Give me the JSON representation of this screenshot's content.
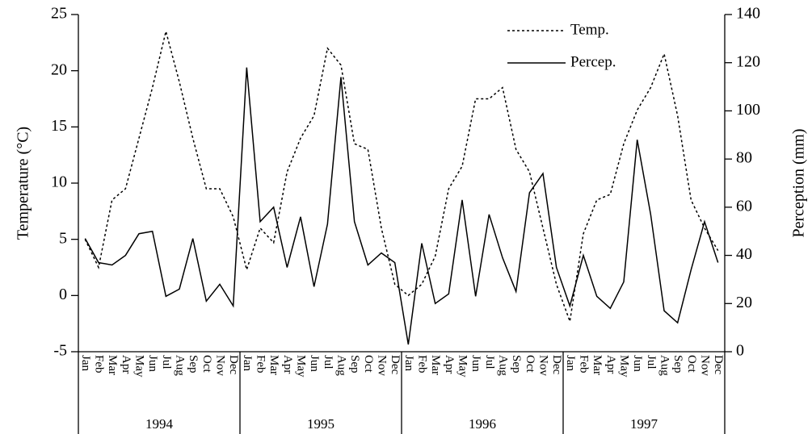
{
  "chart_data": {
    "type": "line",
    "y_label": "Temperature (°C)",
    "y2_label": "Perception (mm)",
    "categories": [
      "Jan",
      "Feb",
      "Mar",
      "Apr",
      "May",
      "Jun",
      "Jul",
      "Aug",
      "Sep",
      "Oct",
      "Nov",
      "Dec",
      "Jan",
      "Feb",
      "Mar",
      "Apr",
      "May",
      "Jun",
      "Jul",
      "Aug",
      "Sep",
      "Oct",
      "Nov",
      "Dec",
      "Jan",
      "Feb",
      "Mar",
      "Apr",
      "May",
      "Jun",
      "Jul",
      "Aug",
      "Sep",
      "Oct",
      "Nov",
      "Dec",
      "Jan",
      "Feb",
      "Mar",
      "Apr",
      "May",
      "Jun",
      "Jul",
      "Aug",
      "Sep",
      "Oct",
      "Nov",
      "Dec"
    ],
    "groups": [
      "1994",
      "1995",
      "1996",
      "1997"
    ],
    "series": [
      {
        "name": "Temp.",
        "color": "#000000",
        "style": "dotted",
        "values": [
          5,
          2.5,
          8.5,
          9.5,
          14,
          18.5,
          23.5,
          19,
          14,
          9.5,
          9.5,
          7,
          2.3,
          6,
          4.7,
          11,
          14,
          16,
          22,
          20.5,
          13.5,
          13,
          6,
          1,
          0,
          1,
          3.5,
          9.5,
          11.5,
          17.5,
          17.5,
          18.5,
          13,
          11,
          6,
          1,
          -2.3,
          5.5,
          8.5,
          9,
          13.5,
          16.5,
          18.5,
          21.5,
          16,
          8.5,
          6,
          4
        ]
      },
      {
        "name": "Percep.",
        "color": "#000000",
        "style": "solid",
        "axis": "y2",
        "values": [
          47,
          37,
          36,
          40,
          49,
          50,
          23,
          26,
          47,
          21,
          28,
          19,
          118,
          54,
          60,
          35,
          56,
          27,
          53,
          114,
          54,
          36,
          41,
          37,
          3,
          45,
          20,
          24,
          63,
          23,
          57,
          39,
          25,
          66,
          74,
          35,
          19,
          40,
          23,
          18,
          29,
          88,
          57,
          17,
          12,
          34,
          54,
          37
        ]
      }
    ],
    "ylim": [
      -5,
      25
    ],
    "yticks": [
      -5,
      0,
      5,
      10,
      15,
      20,
      25
    ],
    "y2lim": [
      0,
      140
    ],
    "y2ticks": [
      0,
      20,
      40,
      60,
      80,
      100,
      120,
      140
    ],
    "legend": "top-right"
  }
}
